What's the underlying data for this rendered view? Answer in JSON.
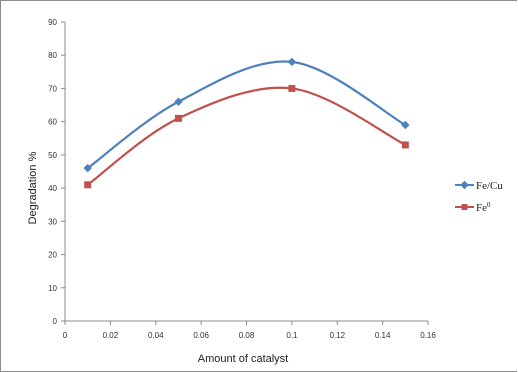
{
  "chart_data": {
    "type": "line",
    "title": "",
    "xlabel": "Amount of catalyst",
    "ylabel": "Degradation %",
    "xlim": [
      0,
      0.16
    ],
    "ylim": [
      0,
      90
    ],
    "x_ticks": [
      "0",
      "0.02",
      "0.04",
      "0.06",
      "0.08",
      "0.1",
      "0.12",
      "0.14",
      "0.16"
    ],
    "y_ticks": [
      "0",
      "10",
      "20",
      "30",
      "40",
      "50",
      "60",
      "70",
      "80",
      "90"
    ],
    "grid": false,
    "legend_position": "right",
    "series": [
      {
        "name": "Fe/Cu",
        "color": "#4f81bd",
        "marker": "diamond",
        "smooth": true,
        "x": [
          0.01,
          0.05,
          0.1,
          0.15
        ],
        "y": [
          46,
          66,
          78,
          59
        ]
      },
      {
        "name": "Fe",
        "name_superscript": "0",
        "color": "#c0504d",
        "marker": "square",
        "smooth": true,
        "x": [
          0.01,
          0.05,
          0.1,
          0.15
        ],
        "y": [
          41,
          61,
          70,
          53
        ]
      }
    ]
  }
}
